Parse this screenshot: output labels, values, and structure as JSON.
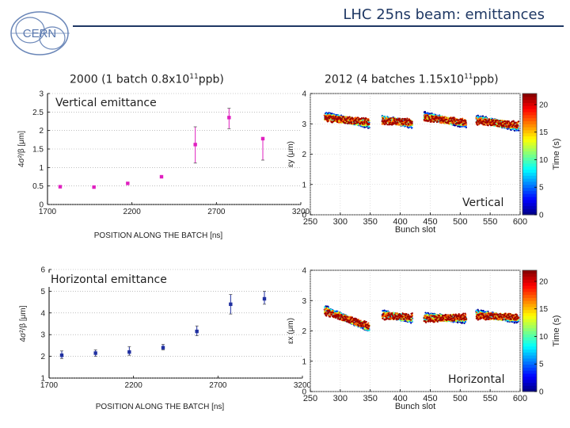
{
  "slide": {
    "title": "LHC 25ns beam: emittances",
    "logo_text": "CERN",
    "left_heading": {
      "pre": "2000 (1 batch 0.8x10",
      "sup": "11",
      "post": "ppb)"
    },
    "right_heading": {
      "pre": "2012 (4 batches 1.15x10",
      "sup": "11",
      "post": "ppb)"
    },
    "label_vertical_emittance": "Vertical emittance",
    "label_horizontal_emittance": "Horizontal emittance",
    "label_vertical": "Vertical",
    "label_horizontal": "Horizontal"
  },
  "colors": {
    "title": "#1f3864",
    "vertical_points": "#e020c0",
    "horizontal_points": "#2030a0"
  },
  "chart_data": [
    {
      "id": "v2000",
      "type": "scatter",
      "xlabel": "POSITION ALONG THE BATCH [ns]",
      "ylabel": "4σ²/β [μm]",
      "xlim": [
        1700,
        3200
      ],
      "ylim": [
        0,
        3
      ],
      "xticks": [
        1700,
        2200,
        2700,
        3200
      ],
      "yticks": [
        0,
        0.5,
        1,
        1.5,
        2,
        2.5,
        3
      ],
      "ytick_labels": [
        "0",
        "0.5",
        "1",
        "1.5",
        "2",
        "2.5",
        "3"
      ],
      "points": [
        {
          "x": 1775,
          "y": 0.48
        },
        {
          "x": 1975,
          "y": 0.47
        },
        {
          "x": 2175,
          "y": 0.57
        },
        {
          "x": 2375,
          "y": 0.75
        },
        {
          "x": 2575,
          "y": 1.62,
          "err": [
            1.12,
            2.1
          ]
        },
        {
          "x": 2775,
          "y": 2.35,
          "err": [
            2.05,
            2.6
          ]
        },
        {
          "x": 2975,
          "y": 1.78,
          "err": [
            1.2,
            1.78
          ]
        }
      ]
    },
    {
      "id": "h2000",
      "type": "scatter",
      "xlabel": "POSITION ALONG THE BATCH [ns]",
      "ylabel": "4σ²/β [μm]",
      "xlim": [
        1700,
        3200
      ],
      "ylim": [
        1,
        6
      ],
      "xticks": [
        1700,
        2200,
        2700,
        3200
      ],
      "yticks": [
        1,
        2,
        3,
        4,
        5,
        6
      ],
      "ytick_labels": [
        "1",
        "2",
        "3",
        "4",
        "5",
        "6"
      ],
      "points": [
        {
          "x": 1775,
          "y": 2.05,
          "err": [
            1.9,
            2.25
          ]
        },
        {
          "x": 1975,
          "y": 2.15,
          "err": [
            2.0,
            2.3
          ]
        },
        {
          "x": 2175,
          "y": 2.2,
          "err": [
            2.05,
            2.45
          ]
        },
        {
          "x": 2375,
          "y": 2.4,
          "err": [
            2.3,
            2.55
          ]
        },
        {
          "x": 2575,
          "y": 3.15,
          "err": [
            2.95,
            3.4
          ]
        },
        {
          "x": 2775,
          "y": 4.4,
          "err": [
            3.95,
            4.85
          ]
        },
        {
          "x": 2975,
          "y": 4.65,
          "err": [
            4.4,
            5.0
          ]
        }
      ]
    },
    {
      "id": "v2012",
      "type": "scatter",
      "xlabel": "Bunch slot",
      "ylabel": "εy (μm)",
      "colorbar_label": "Time (s)",
      "xlim": [
        250,
        600
      ],
      "ylim": [
        0,
        4
      ],
      "xticks": [
        250,
        300,
        350,
        400,
        450,
        500,
        550,
        600
      ],
      "yticks": [
        0,
        1,
        2,
        3,
        4
      ],
      "ytick_labels": [
        "0",
        "1",
        "2",
        "3",
        "4"
      ],
      "colorbar_ticks": [
        0,
        5,
        10,
        15,
        20
      ],
      "colorbar_range": [
        0,
        22
      ],
      "batches": [
        {
          "x_start": 274,
          "x_end": 348,
          "y_start": 3.3,
          "y_end": 2.95
        },
        {
          "x_start": 370,
          "x_end": 420,
          "y_start": 3.2,
          "y_end": 2.95
        },
        {
          "x_start": 440,
          "x_end": 510,
          "y_start": 3.3,
          "y_end": 2.95
        },
        {
          "x_start": 527,
          "x_end": 597,
          "y_start": 3.2,
          "y_end": 2.85
        }
      ]
    },
    {
      "id": "h2012",
      "type": "scatter",
      "xlabel": "Bunch slot",
      "ylabel": "εx (μm)",
      "colorbar_label": "Time (s)",
      "xlim": [
        250,
        600
      ],
      "ylim": [
        0,
        4
      ],
      "xticks": [
        250,
        300,
        350,
        400,
        450,
        500,
        550,
        600
      ],
      "yticks": [
        0,
        1,
        2,
        3,
        4
      ],
      "ytick_labels": [
        "0",
        "1",
        "2",
        "3",
        "4"
      ],
      "colorbar_ticks": [
        0,
        5,
        10,
        15,
        20
      ],
      "colorbar_range": [
        0,
        22
      ],
      "batches": [
        {
          "x_start": 274,
          "x_end": 348,
          "y_start": 2.75,
          "y_end": 2.05
        },
        {
          "x_start": 370,
          "x_end": 420,
          "y_start": 2.6,
          "y_end": 2.35
        },
        {
          "x_start": 440,
          "x_end": 510,
          "y_start": 2.5,
          "y_end": 2.35
        },
        {
          "x_start": 527,
          "x_end": 597,
          "y_start": 2.6,
          "y_end": 2.35
        }
      ]
    }
  ]
}
